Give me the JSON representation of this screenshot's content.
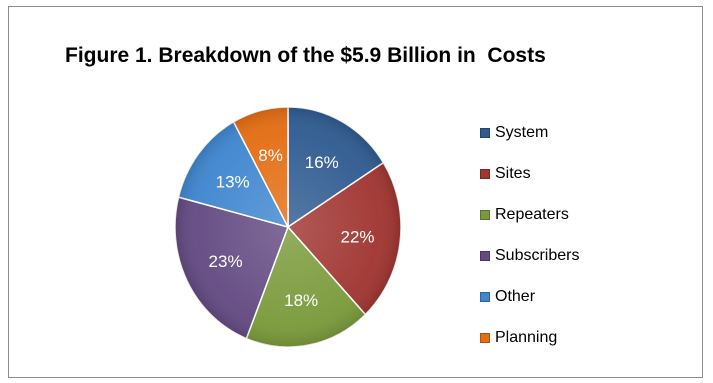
{
  "chart_data": {
    "type": "pie",
    "title": "Figure 1. Breakdown of the $5.9 Billion in  Costs",
    "categories": [
      "System",
      "Sites",
      "Repeaters",
      "Subscribers",
      "Other",
      "Planning"
    ],
    "values": [
      16,
      22,
      18,
      23,
      13,
      8
    ],
    "labels": [
      "16%",
      "22%",
      "18%",
      "23%",
      "13%",
      "8%"
    ],
    "colors": [
      "#2f5b90",
      "#a03531",
      "#7a9a3a",
      "#634a82",
      "#3f86cf",
      "#e46d13"
    ],
    "legend_position": "right"
  }
}
